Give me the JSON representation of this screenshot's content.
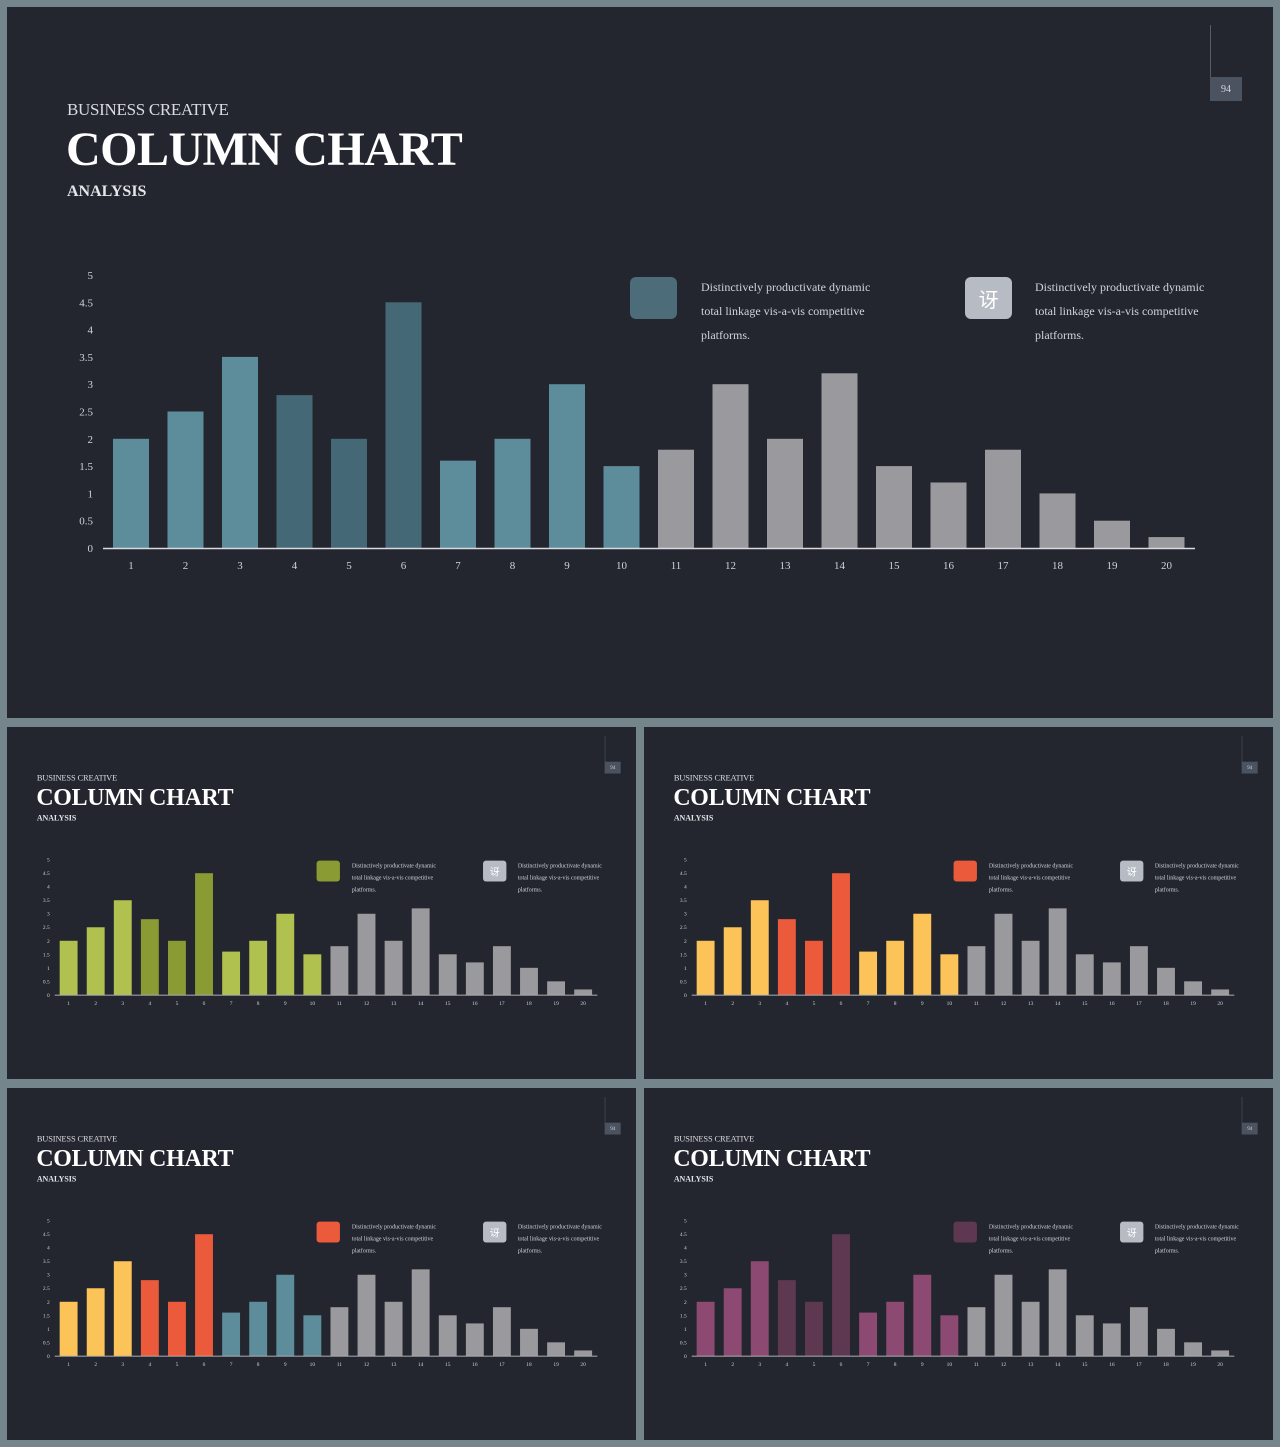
{
  "slides": [
    {
      "id": "main",
      "subtitle": "BUSINESS CREATIVE",
      "title": "COLUMN CHART",
      "analysis": "ANALYSIS",
      "page_number": "94",
      "legend": [
        {
          "text": "Distinctively productivate dynamic total linkage vis-a-vis competitive platforms.",
          "icon": "square-swatch",
          "color": "#4b6c78"
        },
        {
          "text": "Distinctively productivate dynamic total linkage vis-a-vis competitive platforms.",
          "icon": "chinese-glyph-icon",
          "glyph": "讶",
          "color": "#b7bbc4"
        }
      ],
      "colors": {
        "light": "#5d8c9b",
        "dark": "#456876",
        "gray": "#9a999d"
      }
    },
    {
      "id": "green",
      "subtitle": "BUSINESS CREATIVE",
      "title": "COLUMN CHART",
      "analysis": "ANALYSIS",
      "page_number": "94",
      "legend": [
        {
          "text": "Distinctively productivate dynamic total linkage vis-a-vis competitive platforms.",
          "icon": "square-swatch",
          "color": "#8b9b33"
        },
        {
          "text": "Distinctively productivate dynamic total linkage vis-a-vis competitive platforms.",
          "icon": "chinese-glyph-icon",
          "glyph": "讶",
          "color": "#b7bbc4"
        }
      ],
      "colors": {
        "light": "#b0c14f",
        "dark": "#8b9b33",
        "gray": "#9a999d"
      }
    },
    {
      "id": "orange",
      "subtitle": "BUSINESS CREATIVE",
      "title": "COLUMN CHART",
      "analysis": "ANALYSIS",
      "page_number": "94",
      "legend": [
        {
          "text": "Distinctively productivate dynamic total linkage vis-a-vis competitive platforms.",
          "icon": "square-swatch",
          "color": "#eb5b3b"
        },
        {
          "text": "Distinctively productivate dynamic total linkage vis-a-vis competitive platforms.",
          "icon": "chinese-glyph-icon",
          "glyph": "讶",
          "color": "#b7bbc4"
        }
      ],
      "colors": {
        "light": "#fcc458",
        "dark": "#eb5b3b",
        "gray": "#9a999d"
      }
    },
    {
      "id": "mixed",
      "subtitle": "BUSINESS CREATIVE",
      "title": "COLUMN CHART",
      "analysis": "ANALYSIS",
      "page_number": "94",
      "legend": [
        {
          "text": "Distinctively productivate dynamic total linkage vis-a-vis competitive platforms.",
          "icon": "square-swatch",
          "color": "#eb5b3b"
        },
        {
          "text": "Distinctively productivate dynamic total linkage vis-a-vis competitive platforms.",
          "icon": "chinese-glyph-icon",
          "glyph": "讶",
          "color": "#b7bbc4"
        }
      ],
      "colors": {
        "light": "#fcc458",
        "dark": "#eb5b3b",
        "teal": "#5d8c9b",
        "gray": "#9a999d"
      },
      "bar_color_overrides": [
        "light",
        "light",
        "light",
        "dark",
        "dark",
        "dark",
        "teal",
        "teal",
        "teal",
        "teal"
      ]
    },
    {
      "id": "purple",
      "subtitle": "BUSINESS CREATIVE",
      "title": "COLUMN CHART",
      "analysis": "ANALYSIS",
      "page_number": "94",
      "legend": [
        {
          "text": "Distinctively productivate dynamic total linkage vis-a-vis competitive platforms.",
          "icon": "square-swatch",
          "color": "#5e3850"
        },
        {
          "text": "Distinctively productivate dynamic total linkage vis-a-vis competitive platforms.",
          "icon": "chinese-glyph-icon",
          "glyph": "讶",
          "color": "#b7bbc4"
        }
      ],
      "colors": {
        "light": "#8c4a72",
        "dark": "#5e3850",
        "gray": "#9a999d"
      }
    }
  ],
  "chart_data": {
    "type": "bar",
    "categories": [
      "1",
      "2",
      "3",
      "4",
      "5",
      "6",
      "7",
      "8",
      "9",
      "10",
      "11",
      "12",
      "13",
      "14",
      "15",
      "16",
      "17",
      "18",
      "19",
      "20"
    ],
    "values": [
      2,
      2.5,
      3.5,
      2.8,
      2,
      4.5,
      1.6,
      2,
      3,
      1.5,
      1.8,
      3,
      2,
      3.2,
      1.5,
      1.2,
      1.8,
      1,
      0.5,
      0.2
    ],
    "ylim": [
      0,
      5
    ],
    "yticks": [
      "0",
      "0.5",
      "1",
      "1.5",
      "2",
      "2.5",
      "3",
      "3.5",
      "4",
      "4.5",
      "5"
    ],
    "bar_color_roles": [
      "light",
      "light",
      "light",
      "dark",
      "dark",
      "dark",
      "light",
      "light",
      "light",
      "light",
      "gray",
      "gray",
      "gray",
      "gray",
      "gray",
      "gray",
      "gray",
      "gray",
      "gray",
      "gray"
    ],
    "grid": false
  }
}
